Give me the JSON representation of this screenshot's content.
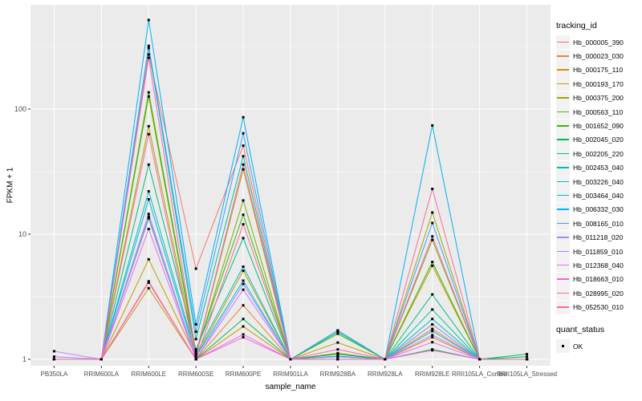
{
  "theme": {
    "panel_bg": "#EBEBEB",
    "grid_color": "#FFFFFF",
    "point_color": "#000000",
    "tick_text_color": "#4D4D4D",
    "tick_mark_color": "#333333"
  },
  "legend": {
    "tracking_title": "tracking_id",
    "quant_title": "quant_status",
    "quant_items": [
      {
        "label": "OK"
      }
    ]
  },
  "chart_data": {
    "type": "line",
    "title": "",
    "xlabel": "sample_name",
    "ylabel": "FPKM + 1",
    "y_scale": "log10",
    "ylim": [
      0.89,
      680
    ],
    "grid": "on",
    "legend_position": "right",
    "y_ticks": [
      {
        "label": "1",
        "value": 1
      },
      {
        "label": "10",
        "value": 10
      },
      {
        "label": "100",
        "value": 100
      }
    ],
    "y_minor_values": [
      3.162,
      31.62,
      316.2
    ],
    "categories": [
      "PB350LA",
      "RRIM600LA",
      "RRIM600LE",
      "RRIM600SE",
      "RRIM600PE",
      "RRIM901LA",
      "RRIM928BA",
      "RRIM928LA",
      "RRIM928LE",
      "RRII105LA_Control",
      "RRII105LA_Stressed"
    ],
    "quant_status_all": "OK",
    "series": [
      {
        "name": "Hb_000005_390",
        "color": "#F8766D",
        "values": [
          1,
          1,
          273,
          5.3,
          51,
          1,
          1,
          1,
          1.9,
          1,
          1
        ]
      },
      {
        "name": "Hb_000023_030",
        "color": "#EA8331",
        "values": [
          1,
          1,
          4.2,
          1,
          2.7,
          1,
          1.1,
          1,
          1.75,
          1,
          1
        ]
      },
      {
        "name": "Hb_000175_110",
        "color": "#D89000",
        "values": [
          1,
          1,
          3.7,
          1,
          1.83,
          1,
          1.05,
          1,
          1.5,
          1,
          1
        ]
      },
      {
        "name": "Hb_000193_170",
        "color": "#C09B00",
        "values": [
          1,
          1,
          6.3,
          1.05,
          5.1,
          1,
          1.36,
          1,
          5.6,
          1,
          1
        ]
      },
      {
        "name": "Hb_000375_200",
        "color": "#A3A500",
        "values": [
          1,
          1,
          73,
          1.1,
          33,
          1,
          1.7,
          1,
          14.9,
          1,
          1
        ]
      },
      {
        "name": "Hb_000563_110",
        "color": "#7CAE00",
        "values": [
          1,
          1,
          126,
          1.1,
          18.6,
          1,
          1.12,
          1,
          9.0,
          1,
          1
        ]
      },
      {
        "name": "Hb_001652_090",
        "color": "#39B600",
        "values": [
          1,
          1,
          136,
          1.15,
          14.3,
          1,
          1.6,
          1,
          6.0,
          1,
          1
        ]
      },
      {
        "name": "Hb_002045_020",
        "color": "#00BB4E",
        "values": [
          1,
          1,
          13.4,
          1,
          2.1,
          1,
          1.1,
          1,
          1.2,
          1,
          1.05
        ]
      },
      {
        "name": "Hb_002205_220",
        "color": "#00BF7D",
        "values": [
          1,
          1,
          36,
          1.2,
          9.3,
          1,
          1.05,
          1,
          3.3,
          1,
          1.1
        ]
      },
      {
        "name": "Hb_002453_040",
        "color": "#00C1A3",
        "values": [
          1,
          1,
          307,
          1.45,
          42,
          1,
          1.65,
          1,
          2.5,
          1,
          1
        ]
      },
      {
        "name": "Hb_003226_040",
        "color": "#00BFC4",
        "values": [
          1,
          1,
          22,
          1.1,
          5.5,
          1,
          1,
          1,
          2.1,
          1,
          1
        ]
      },
      {
        "name": "Hb_003464_040",
        "color": "#00BAE0",
        "values": [
          1,
          1,
          19,
          1.05,
          4.25,
          1,
          1,
          1,
          1.68,
          1,
          1
        ]
      },
      {
        "name": "Hb_006332_030",
        "color": "#00B0F6",
        "values": [
          1,
          1,
          515,
          1.9,
          86,
          1,
          1.06,
          1,
          74,
          1,
          1
        ]
      },
      {
        "name": "Hb_008165_010",
        "color": "#35A2FF",
        "values": [
          1,
          1,
          320,
          1.66,
          64,
          1,
          1.7,
          1,
          12.3,
          1,
          1
        ]
      },
      {
        "name": "Hb_011218_020",
        "color": "#9590FF",
        "values": [
          1.05,
          1,
          14.5,
          1,
          4.0,
          1,
          1.05,
          1,
          1.9,
          1,
          1
        ]
      },
      {
        "name": "Hb_011859_010",
        "color": "#C77CFF",
        "values": [
          1.16,
          1,
          13.8,
          1,
          3.6,
          1,
          1,
          1,
          1.56,
          1,
          1
        ]
      },
      {
        "name": "Hb_012368_040",
        "color": "#E76BF3",
        "values": [
          1,
          1,
          11,
          1,
          1.58,
          1,
          1,
          1,
          1.37,
          1,
          1
        ]
      },
      {
        "name": "Hb_018663_010",
        "color": "#FA62DB",
        "values": [
          1,
          1,
          4.1,
          1,
          1.5,
          1,
          1,
          1,
          1.18,
          1,
          1
        ]
      },
      {
        "name": "Hb_028995_020",
        "color": "#FF62BC",
        "values": [
          1,
          1,
          257,
          1.1,
          36,
          1,
          1.2,
          1,
          9.6,
          1,
          1
        ]
      },
      {
        "name": "Hb_052530_010",
        "color": "#FF6A98",
        "values": [
          1,
          1,
          63,
          1,
          12,
          1,
          1,
          1,
          23,
          1,
          1
        ]
      }
    ]
  }
}
